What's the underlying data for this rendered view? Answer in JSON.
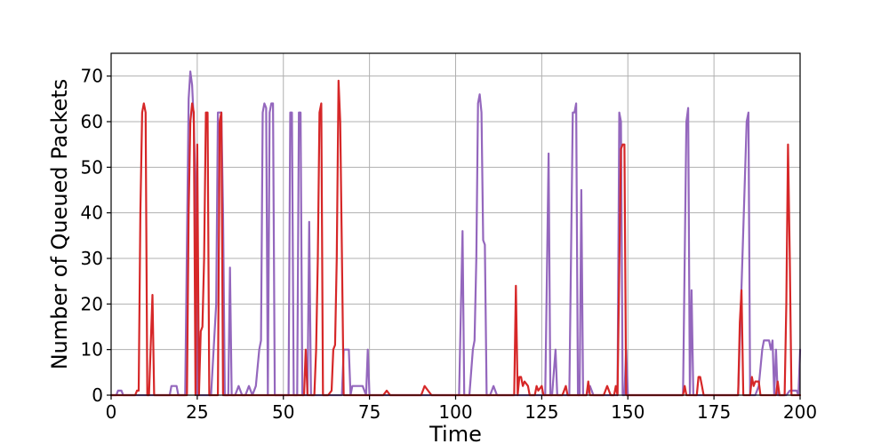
{
  "chart_data": {
    "type": "line",
    "xlabel": "Time",
    "ylabel": "Number of Queued Packets",
    "xlim": [
      0,
      200
    ],
    "ylim": [
      0,
      75
    ],
    "xticks": [
      0,
      25,
      50,
      75,
      100,
      125,
      150,
      175,
      200
    ],
    "yticks": [
      0,
      10,
      20,
      30,
      40,
      50,
      60,
      70
    ],
    "grid": true,
    "series": [
      {
        "color": "#9467bd",
        "points": [
          [
            0,
            0
          ],
          [
            1.5,
            0
          ],
          [
            2,
            1
          ],
          [
            3,
            1
          ],
          [
            3.5,
            0
          ],
          [
            17,
            0
          ],
          [
            17.5,
            2
          ],
          [
            19,
            2
          ],
          [
            19.5,
            0
          ],
          [
            21.5,
            0
          ],
          [
            22.5,
            65
          ],
          [
            23,
            71
          ],
          [
            23.5,
            68
          ],
          [
            24,
            60
          ],
          [
            24.5,
            45
          ],
          [
            25,
            0
          ],
          [
            29,
            0
          ],
          [
            30.5,
            20
          ],
          [
            31,
            62
          ],
          [
            32,
            62
          ],
          [
            32.5,
            40
          ],
          [
            33,
            0
          ],
          [
            34,
            0
          ],
          [
            34.5,
            28
          ],
          [
            35,
            0
          ],
          [
            36,
            0
          ],
          [
            37,
            2
          ],
          [
            38,
            0
          ],
          [
            39,
            0
          ],
          [
            40,
            2
          ],
          [
            41,
            0
          ],
          [
            42,
            2
          ],
          [
            43,
            10
          ],
          [
            43.5,
            12
          ],
          [
            44,
            62
          ],
          [
            44.5,
            64
          ],
          [
            45,
            63
          ],
          [
            45.5,
            0
          ],
          [
            46,
            62
          ],
          [
            46.5,
            64
          ],
          [
            47,
            64
          ],
          [
            47.5,
            0
          ],
          [
            51.5,
            0
          ],
          [
            52,
            62
          ],
          [
            52.5,
            62
          ],
          [
            53,
            0
          ],
          [
            54,
            0
          ],
          [
            54.5,
            62
          ],
          [
            55,
            62
          ],
          [
            55.5,
            0
          ],
          [
            57,
            0
          ],
          [
            57.5,
            38
          ],
          [
            58,
            0
          ],
          [
            62,
            0
          ],
          [
            63,
            0
          ],
          [
            67,
            0
          ],
          [
            67.5,
            10
          ],
          [
            69,
            10
          ],
          [
            69.5,
            0
          ],
          [
            70,
            2
          ],
          [
            73,
            2
          ],
          [
            74,
            0
          ],
          [
            74.5,
            10
          ],
          [
            75,
            0
          ],
          [
            101,
            0
          ],
          [
            102,
            36
          ],
          [
            102.5,
            0
          ],
          [
            104,
            0
          ],
          [
            105,
            10
          ],
          [
            105.5,
            12
          ],
          [
            106,
            30
          ],
          [
            106.5,
            64
          ],
          [
            107,
            66
          ],
          [
            107.5,
            62
          ],
          [
            108,
            34
          ],
          [
            108.5,
            33
          ],
          [
            109,
            0
          ],
          [
            110,
            0
          ],
          [
            111,
            2
          ],
          [
            112,
            0
          ],
          [
            126,
            0
          ],
          [
            127,
            53
          ],
          [
            127.5,
            0
          ],
          [
            128,
            0
          ],
          [
            129,
            10
          ],
          [
            129.5,
            0
          ],
          [
            133,
            0
          ],
          [
            134,
            62
          ],
          [
            134.5,
            62
          ],
          [
            135,
            64
          ],
          [
            135.5,
            0
          ],
          [
            136,
            0
          ],
          [
            136.5,
            45
          ],
          [
            137,
            0
          ],
          [
            138,
            0
          ],
          [
            139,
            2
          ],
          [
            140,
            0
          ],
          [
            147,
            0
          ],
          [
            147.5,
            62
          ],
          [
            148,
            60
          ],
          [
            148.5,
            0
          ],
          [
            149,
            0
          ],
          [
            149.5,
            10
          ],
          [
            150,
            0
          ],
          [
            166,
            0
          ],
          [
            167,
            60
          ],
          [
            167.5,
            63
          ],
          [
            168,
            0
          ],
          [
            168.5,
            23
          ],
          [
            169,
            0
          ],
          [
            182,
            0
          ],
          [
            184.5,
            60
          ],
          [
            185,
            62
          ],
          [
            185.5,
            0
          ],
          [
            187,
            0
          ],
          [
            188,
            2
          ],
          [
            189,
            10
          ],
          [
            189.5,
            12
          ],
          [
            191,
            12
          ],
          [
            191.5,
            10
          ],
          [
            192,
            12
          ],
          [
            192.5,
            0
          ],
          [
            193,
            10
          ],
          [
            193.5,
            0
          ],
          [
            194,
            0
          ],
          [
            196,
            0
          ],
          [
            197,
            1
          ],
          [
            199,
            1
          ],
          [
            199.5,
            0
          ],
          [
            200,
            10
          ]
        ]
      },
      {
        "color": "#d62728",
        "points": [
          [
            0,
            0
          ],
          [
            7,
            0
          ],
          [
            7.5,
            1
          ],
          [
            8,
            1
          ],
          [
            8.5,
            40
          ],
          [
            9,
            62
          ],
          [
            9.5,
            64
          ],
          [
            10,
            62
          ],
          [
            10.5,
            0
          ],
          [
            11,
            0
          ],
          [
            12,
            22
          ],
          [
            12.5,
            0
          ],
          [
            22,
            0
          ],
          [
            22.5,
            40
          ],
          [
            23,
            60
          ],
          [
            23.5,
            64
          ],
          [
            24,
            62
          ],
          [
            24.5,
            0
          ],
          [
            25,
            55
          ],
          [
            25.5,
            0
          ],
          [
            26,
            14
          ],
          [
            26.5,
            15
          ],
          [
            27,
            30
          ],
          [
            27.5,
            62
          ],
          [
            28,
            62
          ],
          [
            28.5,
            0
          ],
          [
            31,
            0
          ],
          [
            31.5,
            60
          ],
          [
            32,
            62
          ],
          [
            32.5,
            0
          ],
          [
            48,
            0
          ],
          [
            49,
            0
          ],
          [
            56,
            0
          ],
          [
            56.5,
            10
          ],
          [
            57,
            0
          ],
          [
            59,
            0
          ],
          [
            59.5,
            10
          ],
          [
            60,
            30
          ],
          [
            60.5,
            62
          ],
          [
            61,
            64
          ],
          [
            61.5,
            0
          ],
          [
            63,
            0
          ],
          [
            64,
            1
          ],
          [
            64.5,
            10
          ],
          [
            65,
            11
          ],
          [
            65.5,
            30
          ],
          [
            66,
            69
          ],
          [
            66.5,
            60
          ],
          [
            67,
            31
          ],
          [
            67.5,
            0
          ],
          [
            79,
            0
          ],
          [
            80,
            1
          ],
          [
            81,
            0
          ],
          [
            90,
            0
          ],
          [
            91,
            2
          ],
          [
            92,
            1
          ],
          [
            93,
            0
          ],
          [
            117,
            0
          ],
          [
            117.5,
            24
          ],
          [
            118,
            0
          ],
          [
            118.5,
            4
          ],
          [
            119,
            4
          ],
          [
            119.5,
            2
          ],
          [
            120,
            3
          ],
          [
            121,
            2
          ],
          [
            121.5,
            0
          ],
          [
            123,
            0
          ],
          [
            123.5,
            2
          ],
          [
            124,
            1
          ],
          [
            125,
            2
          ],
          [
            125.5,
            0
          ],
          [
            131,
            0
          ],
          [
            132,
            2
          ],
          [
            132.5,
            0
          ],
          [
            138,
            0
          ],
          [
            138.5,
            3
          ],
          [
            139,
            0
          ],
          [
            143,
            0
          ],
          [
            144,
            2
          ],
          [
            145,
            0
          ],
          [
            146,
            0
          ],
          [
            146.5,
            2
          ],
          [
            147,
            0
          ],
          [
            148,
            54
          ],
          [
            148.5,
            55
          ],
          [
            149,
            55
          ],
          [
            149.5,
            0
          ],
          [
            166,
            0
          ],
          [
            166.5,
            2
          ],
          [
            167,
            0
          ],
          [
            170,
            0
          ],
          [
            170.5,
            4
          ],
          [
            171,
            4
          ],
          [
            171.5,
            2
          ],
          [
            172,
            0
          ],
          [
            182,
            0
          ],
          [
            182.5,
            16
          ],
          [
            183,
            23
          ],
          [
            183.5,
            0
          ],
          [
            185.5,
            0
          ],
          [
            186,
            4
          ],
          [
            186.5,
            2
          ],
          [
            187,
            3
          ],
          [
            188,
            3
          ],
          [
            188.5,
            0
          ],
          [
            193,
            0
          ],
          [
            193.5,
            3
          ],
          [
            194,
            0
          ],
          [
            195.5,
            0
          ],
          [
            196,
            20
          ],
          [
            196.5,
            55
          ],
          [
            197,
            30
          ],
          [
            197.5,
            0
          ],
          [
            200,
            0
          ]
        ]
      }
    ]
  }
}
